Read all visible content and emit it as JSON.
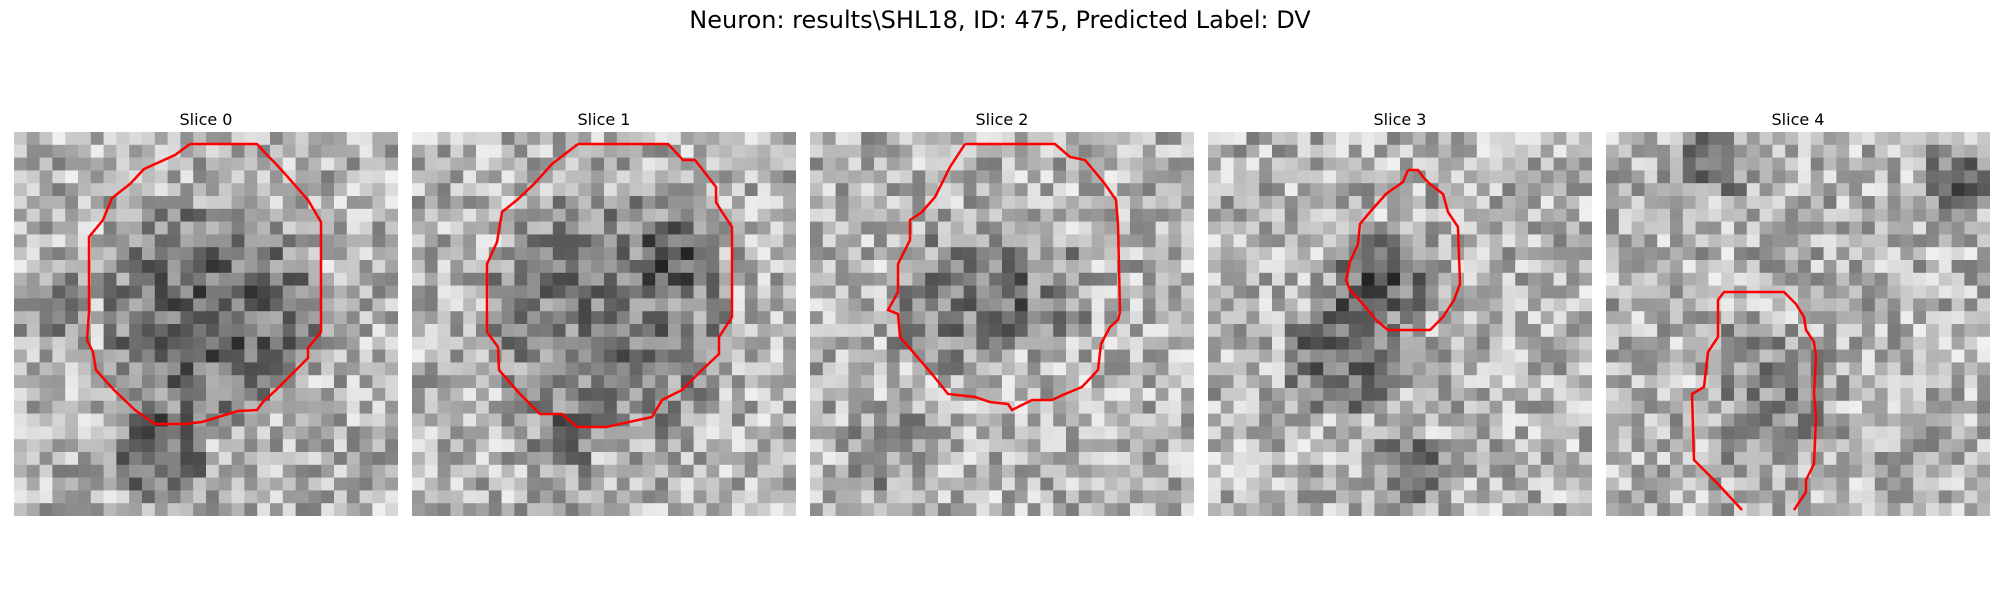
{
  "figure": {
    "title": "Neuron: results\\SHL18, ID: 475, Predicted Label: DV"
  },
  "panels": [
    {
      "title": "Slice 0",
      "contour_color": "#ff0000"
    },
    {
      "title": "Slice 1",
      "contour_color": "#ff0000"
    },
    {
      "title": "Slice 2",
      "contour_color": "#ff0000"
    },
    {
      "title": "Slice 3",
      "contour_color": "#ff0000"
    },
    {
      "title": "Slice 4",
      "contour_color": "#ff0000"
    }
  ]
}
